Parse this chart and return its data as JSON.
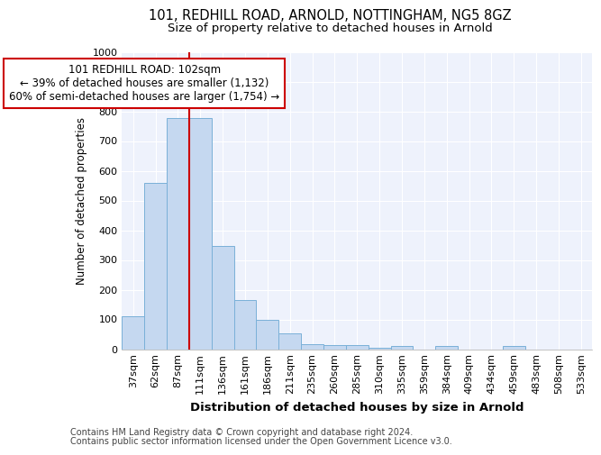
{
  "title": "101, REDHILL ROAD, ARNOLD, NOTTINGHAM, NG5 8GZ",
  "subtitle": "Size of property relative to detached houses in Arnold",
  "xlabel": "Distribution of detached houses by size in Arnold",
  "ylabel": "Number of detached properties",
  "categories": [
    "37sqm",
    "62sqm",
    "87sqm",
    "111sqm",
    "136sqm",
    "161sqm",
    "186sqm",
    "211sqm",
    "235sqm",
    "260sqm",
    "285sqm",
    "310sqm",
    "335sqm",
    "359sqm",
    "384sqm",
    "409sqm",
    "434sqm",
    "459sqm",
    "483sqm",
    "508sqm",
    "533sqm"
  ],
  "values": [
    112,
    558,
    778,
    778,
    348,
    165,
    98,
    53,
    18,
    15,
    13,
    5,
    12,
    0,
    10,
    0,
    0,
    10,
    0,
    0,
    0
  ],
  "bar_color": "#c5d8f0",
  "bar_edge_color": "#7ab0d8",
  "vline_color": "#cc0000",
  "annotation_text": "101 REDHILL ROAD: 102sqm\n← 39% of detached houses are smaller (1,132)\n60% of semi-detached houses are larger (1,754) →",
  "annotation_box_color": "#cc0000",
  "annotation_text_color": "#000000",
  "ylim": [
    0,
    1000
  ],
  "yticks": [
    0,
    100,
    200,
    300,
    400,
    500,
    600,
    700,
    800,
    900,
    1000
  ],
  "background_color": "#eef2fc",
  "footer_line1": "Contains HM Land Registry data © Crown copyright and database right 2024.",
  "footer_line2": "Contains public sector information licensed under the Open Government Licence v3.0.",
  "title_fontsize": 10.5,
  "subtitle_fontsize": 9.5,
  "xlabel_fontsize": 9.5,
  "ylabel_fontsize": 8.5,
  "tick_fontsize": 8,
  "footer_fontsize": 7,
  "annotation_fontsize": 8.5
}
